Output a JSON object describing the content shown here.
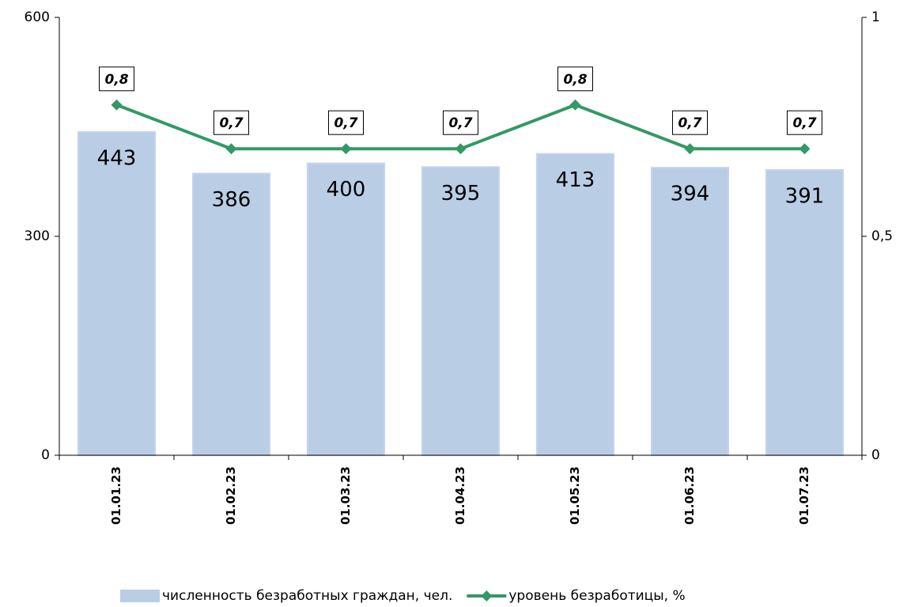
{
  "chart_data": {
    "type": "bar",
    "categories": [
      "01.01.23",
      "01.02.23",
      "01.03.23",
      "01.04.23",
      "01.05.23",
      "01.06.23",
      "01.07.23"
    ],
    "series": [
      {
        "name": "численность безработных граждан, чел.",
        "color": "#b9cde5",
        "values": [
          443,
          386,
          400,
          395,
          413,
          394,
          391
        ]
      },
      {
        "name": "уровень безработицы, %",
        "color": "#339966",
        "type": "line",
        "axis": "y2",
        "values": [
          0.8,
          0.7,
          0.7,
          0.7,
          0.8,
          0.7,
          0.7
        ],
        "value_labels": [
          "0,8",
          "0,7",
          "0,7",
          "0,7",
          "0,8",
          "0,7",
          "0,7"
        ]
      }
    ],
    "ylim": [
      0,
      600
    ],
    "yticks": [
      0,
      300,
      600
    ],
    "y2lim": [
      0,
      1
    ],
    "y2ticks": [
      0,
      {
        "value": 0.5,
        "label": "0,5"
      },
      1
    ],
    "legend": "bottom"
  }
}
